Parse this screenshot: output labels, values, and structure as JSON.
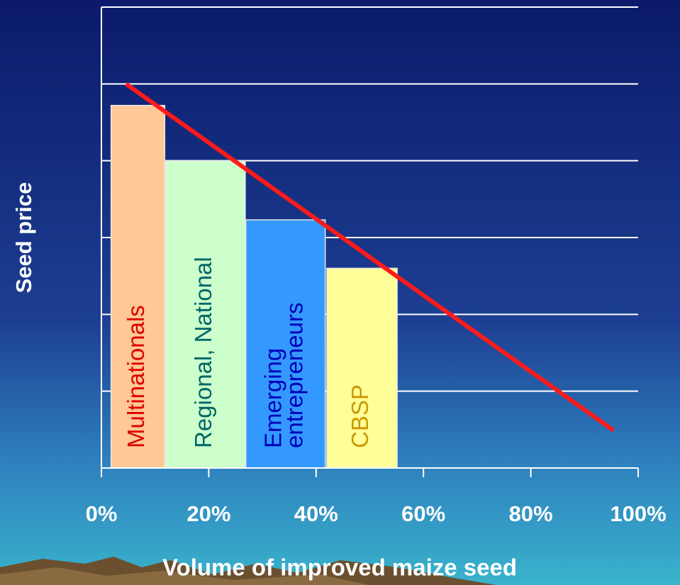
{
  "chart_data": {
    "type": "bar",
    "x_label": "Volume of improved maize seed",
    "y_label": "Seed price",
    "xlim": [
      0,
      100
    ],
    "xticks": [
      {
        "value": 0,
        "label": "0%"
      },
      {
        "value": 20,
        "label": "20%"
      },
      {
        "value": 40,
        "label": "40%"
      },
      {
        "value": 60,
        "label": "60%"
      },
      {
        "value": 80,
        "label": "80%"
      },
      {
        "value": 100,
        "label": "100%"
      }
    ],
    "ylim": [
      0,
      6
    ],
    "yticks": [
      0,
      1,
      2,
      3,
      4,
      5,
      6
    ],
    "grid": true,
    "bars": [
      {
        "name": [
          "Multinationals"
        ],
        "x0": 1.8,
        "x1": 11.8,
        "value": 4.72,
        "color": "#ffc896",
        "label_color": "#dd0000"
      },
      {
        "name": [
          "Regional, National"
        ],
        "x0": 11.9,
        "x1": 26.8,
        "value": 4.0,
        "color": "#ccffcc",
        "label_color": "#006666"
      },
      {
        "name": [
          "Emerging",
          "entrepreneurs"
        ],
        "x0": 26.9,
        "x1": 41.7,
        "value": 3.23,
        "color": "#3399ff",
        "label_color": "#0000bb"
      },
      {
        "name": [
          "CBSP"
        ],
        "x0": 42.0,
        "x1": 55.1,
        "value": 2.6,
        "color": "#ffff99",
        "label_color": "#cc9900"
      }
    ],
    "trend": {
      "x": [
        4.6,
        95.4
      ],
      "y": [
        5.0,
        0.49
      ],
      "color": "#ff1a1a"
    }
  }
}
